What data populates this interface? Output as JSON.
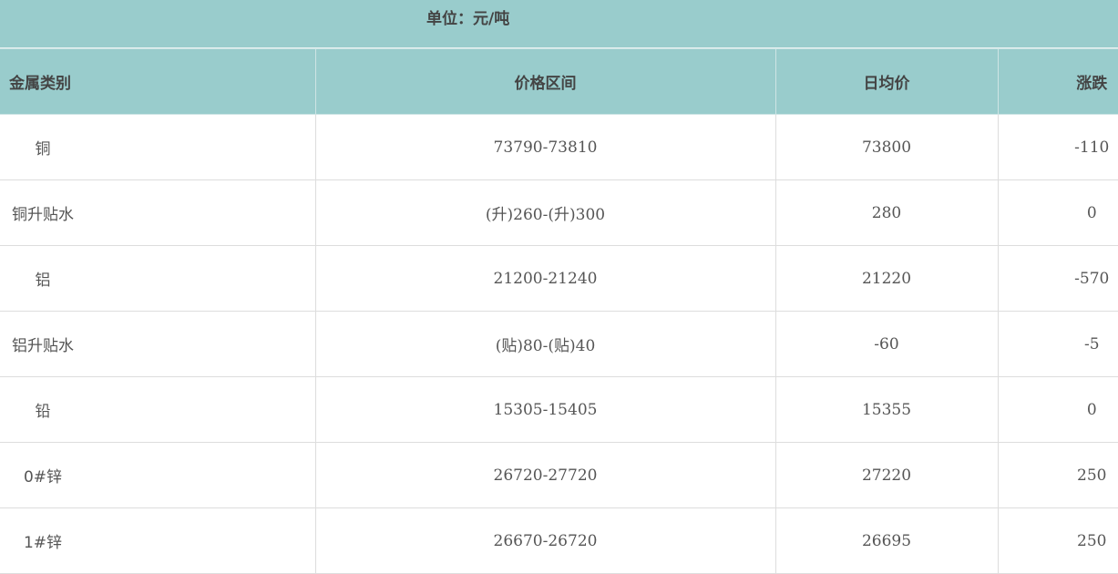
{
  "unit_label": "单位：元/吨",
  "headers": [
    "金属类别",
    "价格区间",
    "日均价",
    "涨跌"
  ],
  "colors": {
    "header_bg": "#99cccc",
    "border": "#dddddd"
  },
  "rows": [
    {
      "metal": "铜",
      "range": "73790-73810",
      "avg": "73800",
      "change": "-110"
    },
    {
      "metal": "铜升贴水",
      "range": "(升)260-(升)300",
      "avg": "280",
      "change": "0"
    },
    {
      "metal": "铝",
      "range": "21200-21240",
      "avg": "21220",
      "change": "-570"
    },
    {
      "metal": "铝升贴水",
      "range": "(贴)80-(贴)40",
      "avg": "-60",
      "change": "-5"
    },
    {
      "metal": "铅",
      "range": "15305-15405",
      "avg": "15355",
      "change": "0"
    },
    {
      "metal": "0#锌",
      "range": "26720-27720",
      "avg": "27220",
      "change": "250"
    },
    {
      "metal": "1#锌",
      "range": "26670-26720",
      "avg": "26695",
      "change": "250"
    }
  ]
}
